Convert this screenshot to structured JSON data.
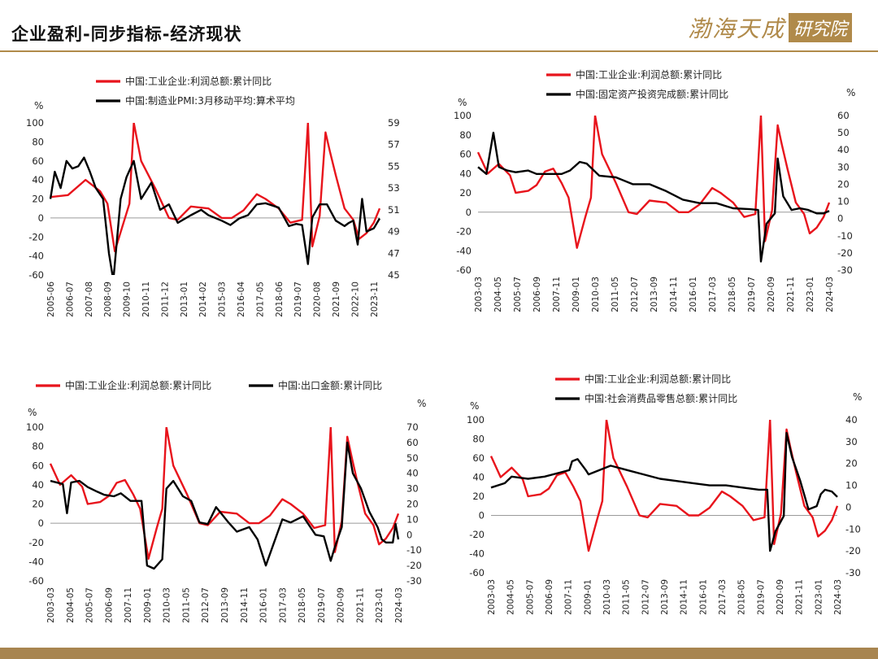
{
  "title": "企业盈利-同步指标-经济现状",
  "logo": {
    "text": "渤海天成",
    "box_text": "研究院"
  },
  "colors": {
    "profit": "#e8141c",
    "indicator": "#000000",
    "accent": "#b08a4a"
  },
  "chart_data": [
    {
      "type": "line",
      "left_unit": "%",
      "left_ylim": [
        -60,
        100
      ],
      "left_ticks": [
        100,
        80,
        60,
        40,
        20,
        0,
        -20,
        -40,
        -60
      ],
      "right_ylim": [
        45,
        59
      ],
      "right_ticks": [
        59,
        57,
        55,
        53,
        51,
        49,
        47,
        45
      ],
      "x_range": [
        "2005-06",
        "2024-03"
      ],
      "x_ticks": [
        "2005-06",
        "2006-07",
        "2007-08",
        "2008-09",
        "2009-10",
        "2010-11",
        "2011-12",
        "2013-01",
        "2014-02",
        "2015-03",
        "2016-04",
        "2017-05",
        "2018-06",
        "2019-07",
        "2020-08",
        "2021-09",
        "2022-10",
        "2023-11"
      ],
      "series": [
        {
          "name": "中国:工业企业:利润总额:累计同比",
          "axis": "left",
          "color": "#e8141c",
          "x": [
            "2005-06",
            "2006-06",
            "2007-06",
            "2008-04",
            "2008-09",
            "2009-02",
            "2009-08",
            "2009-12",
            "2010-03",
            "2010-08",
            "2011-06",
            "2012-03",
            "2012-09",
            "2013-06",
            "2014-06",
            "2015-03",
            "2015-10",
            "2016-06",
            "2017-03",
            "2017-09",
            "2018-06",
            "2019-02",
            "2019-10",
            "2020-02",
            "2020-05",
            "2020-10",
            "2021-02",
            "2021-05",
            "2021-09",
            "2022-03",
            "2022-09",
            "2023-01",
            "2023-06",
            "2023-11",
            "2024-03"
          ],
          "values": [
            22,
            24,
            40,
            28,
            15,
            -35,
            -5,
            15,
            100,
            60,
            30,
            0,
            -2,
            12,
            10,
            0,
            0,
            8,
            25,
            20,
            10,
            -5,
            -2,
            100,
            -30,
            2,
            90,
            70,
            45,
            10,
            -2,
            -22,
            -16,
            -5,
            10
          ]
        },
        {
          "name": "中国:制造业PMI:3月移动平均:算术平均",
          "axis": "right",
          "color": "#000000",
          "x": [
            "2005-06",
            "2005-09",
            "2006-01",
            "2006-05",
            "2006-09",
            "2007-01",
            "2007-05",
            "2007-09",
            "2008-01",
            "2008-06",
            "2008-10",
            "2009-01",
            "2009-06",
            "2009-10",
            "2010-03",
            "2010-08",
            "2011-03",
            "2011-09",
            "2012-03",
            "2012-09",
            "2013-06",
            "2014-01",
            "2014-06",
            "2015-03",
            "2015-09",
            "2016-03",
            "2016-09",
            "2017-03",
            "2017-09",
            "2018-06",
            "2019-01",
            "2019-06",
            "2019-10",
            "2020-02",
            "2020-05",
            "2020-10",
            "2021-03",
            "2021-09",
            "2022-03",
            "2022-06",
            "2022-09",
            "2022-12",
            "2023-03",
            "2023-06",
            "2023-11",
            "2024-03"
          ],
          "values": [
            52,
            54.5,
            53,
            55.5,
            54.8,
            55,
            55.8,
            54.5,
            53,
            52,
            47,
            44.5,
            52,
            54,
            55.5,
            52,
            53.5,
            51,
            51.5,
            49.8,
            50.5,
            51,
            50.5,
            50,
            49.6,
            50.2,
            50.5,
            51.5,
            51.6,
            51.2,
            49.5,
            49.7,
            49.6,
            46,
            50.3,
            51.5,
            51.5,
            50,
            49.5,
            49.8,
            50,
            47.8,
            52,
            49,
            49.3,
            50.2
          ]
        }
      ]
    },
    {
      "type": "line",
      "left_unit": "%",
      "right_unit": "%",
      "left_ylim": [
        -60,
        100
      ],
      "left_ticks": [
        100,
        80,
        60,
        40,
        20,
        0,
        -20,
        -40,
        -60
      ],
      "right_ylim": [
        -30,
        60
      ],
      "right_ticks": [
        60,
        50,
        40,
        30,
        20,
        10,
        0,
        -10,
        -20,
        -30
      ],
      "x_range": [
        "2003-03",
        "2024-03"
      ],
      "x_ticks": [
        "2003-03",
        "2004-05",
        "2005-07",
        "2006-09",
        "2007-11",
        "2009-01",
        "2010-03",
        "2011-05",
        "2012-07",
        "2013-09",
        "2014-11",
        "2016-01",
        "2017-03",
        "2018-05",
        "2019-07",
        "2020-09",
        "2021-11",
        "2023-01",
        "2024-03"
      ],
      "series": [
        {
          "name": "中国:工业企业:利润总额:累计同比",
          "axis": "left",
          "color": "#e8141c",
          "x": [
            "2003-03",
            "2003-10",
            "2004-06",
            "2005-02",
            "2005-06",
            "2006-03",
            "2006-09",
            "2007-03",
            "2007-09",
            "2008-03",
            "2008-08",
            "2009-02",
            "2009-08",
            "2009-12",
            "2010-03",
            "2010-08",
            "2011-06",
            "2012-03",
            "2012-09",
            "2013-06",
            "2014-06",
            "2015-03",
            "2015-10",
            "2016-06",
            "2017-03",
            "2017-09",
            "2018-06",
            "2019-02",
            "2019-10",
            "2020-02",
            "2020-05",
            "2020-10",
            "2021-02",
            "2021-05",
            "2021-09",
            "2022-03",
            "2022-09",
            "2023-01",
            "2023-06",
            "2023-11",
            "2024-03"
          ],
          "values": [
            62,
            40,
            50,
            38,
            20,
            22,
            28,
            42,
            45,
            30,
            15,
            -37,
            -5,
            15,
            100,
            60,
            30,
            0,
            -2,
            12,
            10,
            0,
            0,
            8,
            25,
            20,
            10,
            -5,
            -2,
            100,
            -30,
            2,
            90,
            70,
            45,
            10,
            -2,
            -22,
            -16,
            -5,
            10
          ]
        },
        {
          "name": "中国:固定资产投资完成额:累计同比",
          "axis": "right",
          "color": "#000000",
          "x": [
            "2003-03",
            "2003-09",
            "2004-02",
            "2004-06",
            "2004-12",
            "2005-06",
            "2006-03",
            "2006-09",
            "2007-06",
            "2008-03",
            "2008-09",
            "2009-04",
            "2009-09",
            "2010-06",
            "2011-06",
            "2012-06",
            "2013-06",
            "2014-06",
            "2015-06",
            "2016-06",
            "2017-06",
            "2018-06",
            "2019-06",
            "2019-12",
            "2020-02",
            "2020-06",
            "2020-12",
            "2021-02",
            "2021-06",
            "2021-12",
            "2022-06",
            "2022-12",
            "2023-06",
            "2023-11",
            "2024-03"
          ],
          "values": [
            30,
            26,
            50,
            30,
            28,
            27,
            28,
            26,
            26,
            26,
            28,
            33,
            32,
            25,
            24,
            20,
            20,
            16,
            11,
            9,
            9,
            6,
            5.5,
            5,
            -25,
            -3,
            3,
            35,
            13,
            5,
            6,
            5,
            3,
            3,
            4.5
          ]
        }
      ]
    },
    {
      "type": "line",
      "left_unit": "%",
      "right_unit": "%",
      "left_ylim": [
        -60,
        100
      ],
      "left_ticks": [
        100,
        80,
        60,
        40,
        20,
        0,
        -20,
        -40,
        -60
      ],
      "right_ylim": [
        -30,
        70
      ],
      "right_ticks": [
        70,
        60,
        50,
        40,
        30,
        20,
        10,
        0,
        -10,
        -20,
        -30
      ],
      "x_range": [
        "2003-03",
        "2024-03"
      ],
      "x_ticks": [
        "2003-03",
        "2004-05",
        "2005-07",
        "2006-09",
        "2007-11",
        "2009-01",
        "2010-03",
        "2011-05",
        "2012-07",
        "2013-09",
        "2014-11",
        "2016-01",
        "2017-03",
        "2018-05",
        "2019-07",
        "2020-09",
        "2021-11",
        "2023-01",
        "2024-03"
      ],
      "series": [
        {
          "name": "中国:工业企业:利润总额:累计同比",
          "axis": "left",
          "color": "#e8141c",
          "x": [
            "2003-03",
            "2003-10",
            "2004-06",
            "2005-02",
            "2005-06",
            "2006-03",
            "2006-09",
            "2007-03",
            "2007-09",
            "2008-03",
            "2008-08",
            "2009-02",
            "2009-08",
            "2009-12",
            "2010-03",
            "2010-08",
            "2011-06",
            "2012-03",
            "2012-09",
            "2013-06",
            "2014-06",
            "2015-03",
            "2015-10",
            "2016-06",
            "2017-03",
            "2017-09",
            "2018-06",
            "2019-02",
            "2019-10",
            "2020-02",
            "2020-05",
            "2020-10",
            "2021-02",
            "2021-05",
            "2021-09",
            "2022-03",
            "2022-09",
            "2023-01",
            "2023-06",
            "2023-11",
            "2024-03"
          ],
          "values": [
            62,
            40,
            50,
            38,
            20,
            22,
            28,
            42,
            45,
            30,
            15,
            -37,
            -5,
            15,
            100,
            60,
            30,
            0,
            -2,
            12,
            10,
            0,
            0,
            8,
            25,
            20,
            10,
            -5,
            -2,
            100,
            -30,
            2,
            90,
            70,
            45,
            10,
            -2,
            -22,
            -16,
            -5,
            10
          ]
        },
        {
          "name": "中国:出口金额:累计同比",
          "axis": "right",
          "color": "#000000",
          "x": [
            "2003-03",
            "2003-12",
            "2004-03",
            "2004-06",
            "2004-12",
            "2005-06",
            "2006-01",
            "2006-06",
            "2007-01",
            "2007-06",
            "2008-01",
            "2008-09",
            "2009-01",
            "2009-06",
            "2009-12",
            "2010-03",
            "2010-08",
            "2011-03",
            "2011-09",
            "2012-03",
            "2012-09",
            "2013-03",
            "2013-12",
            "2014-06",
            "2015-03",
            "2015-09",
            "2016-03",
            "2016-09",
            "2017-03",
            "2017-09",
            "2018-06",
            "2019-03",
            "2019-09",
            "2020-02",
            "2020-05",
            "2020-10",
            "2021-02",
            "2021-06",
            "2021-12",
            "2022-06",
            "2022-12",
            "2023-03",
            "2023-06",
            "2023-11",
            "2024-01",
            "2024-03"
          ],
          "values": [
            35,
            33,
            14,
            34,
            35,
            31,
            28,
            26,
            25,
            27,
            22,
            22,
            -20,
            -22,
            -16,
            30,
            35,
            25,
            22,
            8,
            7,
            18,
            8,
            2,
            5,
            -3,
            -20,
            -5,
            10,
            8,
            12,
            0,
            -1,
            -17,
            -8,
            5,
            60,
            40,
            30,
            15,
            5,
            -3,
            -5,
            -5,
            7,
            -3
          ]
        }
      ]
    },
    {
      "type": "line",
      "left_unit": "%",
      "right_unit": "%",
      "left_ylim": [
        -60,
        100
      ],
      "left_ticks": [
        100,
        80,
        60,
        40,
        20,
        0,
        -20,
        -40,
        -60
      ],
      "right_ylim": [
        -30,
        40
      ],
      "right_ticks": [
        40,
        30,
        20,
        10,
        0,
        -10,
        -20,
        -30
      ],
      "x_range": [
        "2003-03",
        "2024-03"
      ],
      "x_ticks": [
        "2003-03",
        "2004-05",
        "2005-07",
        "2006-09",
        "2007-11",
        "2009-01",
        "2010-03",
        "2011-05",
        "2012-07",
        "2013-09",
        "2014-11",
        "2016-01",
        "2017-03",
        "2018-05",
        "2019-07",
        "2020-09",
        "2021-11",
        "2023-01",
        "2024-03"
      ],
      "series": [
        {
          "name": "中国:工业企业:利润总额:累计同比",
          "axis": "left",
          "color": "#e8141c",
          "x": [
            "2003-03",
            "2003-10",
            "2004-06",
            "2005-02",
            "2005-06",
            "2006-03",
            "2006-09",
            "2007-03",
            "2007-09",
            "2008-03",
            "2008-08",
            "2009-02",
            "2009-08",
            "2009-12",
            "2010-03",
            "2010-08",
            "2011-06",
            "2012-03",
            "2012-09",
            "2013-06",
            "2014-06",
            "2015-03",
            "2015-10",
            "2016-06",
            "2017-03",
            "2017-09",
            "2018-06",
            "2019-02",
            "2019-10",
            "2020-02",
            "2020-05",
            "2020-10",
            "2021-02",
            "2021-05",
            "2021-09",
            "2022-03",
            "2022-09",
            "2023-01",
            "2023-06",
            "2023-11",
            "2024-03"
          ],
          "values": [
            62,
            40,
            50,
            38,
            20,
            22,
            28,
            42,
            45,
            30,
            15,
            -37,
            -5,
            15,
            100,
            60,
            30,
            0,
            -2,
            12,
            10,
            0,
            0,
            8,
            25,
            20,
            10,
            -5,
            -2,
            100,
            -30,
            2,
            90,
            70,
            45,
            10,
            -2,
            -22,
            -16,
            -5,
            10
          ]
        },
        {
          "name": "中国:社会消费品零售总额:累计同比",
          "axis": "right",
          "color": "#000000",
          "x": [
            "2003-03",
            "2004-01",
            "2004-06",
            "2005-06",
            "2006-06",
            "2007-06",
            "2007-12",
            "2008-02",
            "2008-06",
            "2008-12",
            "2009-02",
            "2010-06",
            "2011-06",
            "2012-06",
            "2013-06",
            "2014-06",
            "2015-06",
            "2016-06",
            "2017-06",
            "2018-06",
            "2019-06",
            "2019-12",
            "2020-02",
            "2020-06",
            "2020-12",
            "2021-02",
            "2021-06",
            "2021-12",
            "2022-06",
            "2022-12",
            "2023-03",
            "2023-06",
            "2023-11",
            "2024-03"
          ],
          "values": [
            9,
            11,
            14,
            13,
            14,
            16,
            17,
            21,
            22,
            17,
            15,
            19,
            17,
            15,
            13,
            12,
            11,
            10,
            10,
            9,
            8,
            8,
            -20,
            -11,
            -4,
            34,
            23,
            12,
            -1,
            0.5,
            6,
            8,
            7.2,
            4.7
          ]
        }
      ]
    }
  ]
}
